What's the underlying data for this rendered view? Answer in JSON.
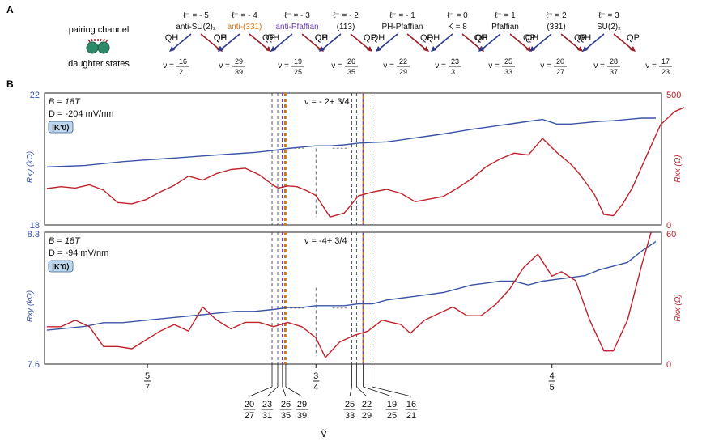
{
  "panel_labels": {
    "a": "A",
    "b": "B"
  },
  "schematic": {
    "pairing_label": "pairing channel",
    "daughter_label": "daughter states",
    "qh_label": "QH",
    "qp_label": "QP",
    "colors": {
      "qh_arrow": "#2b3a8f",
      "qp_arrow": "#9b1d24",
      "anti331": "#d9730d",
      "antipfaffian": "#6a3fb5"
    },
    "channels": [
      {
        "ell": "ℓ⁻ = - 5",
        "name": "anti-SU(2)₂",
        "color": "#111111",
        "qh": [
          "16",
          "21"
        ],
        "qp": [
          "29",
          "39"
        ]
      },
      {
        "ell": "ℓ⁻ = - 4",
        "name": "anti-(331)",
        "color": "#d9730d",
        "qh": [
          "19",
          "25"
        ],
        "qp": [
          "26",
          "35"
        ]
      },
      {
        "ell": "ℓ⁻ = - 3",
        "name": "anti-Pfaffian",
        "color": "#6a3fb5",
        "qh": [
          "22",
          "29"
        ],
        "qp": [
          "23",
          "31"
        ]
      },
      {
        "ell": "ℓ⁻ = - 2",
        "name": "(113)",
        "color": "#111111",
        "qh": [
          "25",
          "33"
        ],
        "qp": [
          "20",
          "27"
        ]
      },
      {
        "ell": "ℓ⁻ = - 1",
        "name": "PH-Pfaffian",
        "color": "#111111",
        "qh": [
          "28",
          "37"
        ],
        "qp": [
          "17",
          "23"
        ]
      },
      {
        "ell": "ℓ⁻ = 0",
        "name": "K = 8",
        "color": "#111111"
      },
      {
        "ell": "ℓ⁻ = 1",
        "name": "Pfaffian",
        "color": "#111111"
      },
      {
        "ell": "ℓ⁻ = 2",
        "name": "(331)",
        "color": "#111111"
      },
      {
        "ell": "ℓ⁻ = 3",
        "name": "SU(2)₂",
        "color": "#111111"
      }
    ]
  },
  "chart_data": {
    "type": "line",
    "x_axis": {
      "label": "ṽ",
      "ticks": [
        {
          "num": "5",
          "den": "7"
        },
        {
          "num": "3",
          "den": "4"
        },
        {
          "num": "4",
          "den": "5"
        }
      ],
      "fraction_markers": [
        {
          "num": "20",
          "den": "27"
        },
        {
          "num": "23",
          "den": "31"
        },
        {
          "num": "26",
          "den": "35"
        },
        {
          "num": "29",
          "den": "39"
        },
        {
          "num": "25",
          "den": "33"
        },
        {
          "num": "22",
          "den": "29"
        },
        {
          "num": "19",
          "den": "25"
        },
        {
          "num": "16",
          "den": "21"
        }
      ]
    },
    "vline_colors": {
      "default": "#333333",
      "anti_pfaffian": "#6a3fb5",
      "anti_331": "#d9730d",
      "rxy_color": "#3a55a8",
      "rxx_color": "#c0222b"
    },
    "panels": [
      {
        "field": "B = 18T",
        "displacement": "D = -204 mV/nm",
        "state_badge": "|K'0⟩",
        "filling_label": "ν = - 2+ 3/4",
        "left_axis": {
          "label": "Rxy (kΩ)",
          "min": "18",
          "max": "22"
        },
        "right_axis": {
          "label": "Rxx (Ω)",
          "min": "0",
          "max": "500"
        },
        "rxy_kohm": [
          [
            0.693,
            19.76
          ],
          [
            0.697,
            19.78
          ],
          [
            0.701,
            19.8
          ],
          [
            0.705,
            19.86
          ],
          [
            0.709,
            19.92
          ],
          [
            0.713,
            19.96
          ],
          [
            0.717,
            20.0
          ],
          [
            0.721,
            20.04
          ],
          [
            0.725,
            20.08
          ],
          [
            0.729,
            20.12
          ],
          [
            0.733,
            20.16
          ],
          [
            0.737,
            20.2
          ],
          [
            0.741,
            20.26
          ],
          [
            0.744,
            20.32
          ],
          [
            0.747,
            20.36
          ],
          [
            0.75,
            20.4
          ],
          [
            0.753,
            20.4
          ],
          [
            0.756,
            20.43
          ],
          [
            0.759,
            20.48
          ],
          [
            0.762,
            20.5
          ],
          [
            0.765,
            20.52
          ],
          [
            0.768,
            20.58
          ],
          [
            0.771,
            20.64
          ],
          [
            0.774,
            20.7
          ],
          [
            0.777,
            20.76
          ],
          [
            0.78,
            20.83
          ],
          [
            0.783,
            20.9
          ],
          [
            0.786,
            20.96
          ],
          [
            0.789,
            21.02
          ],
          [
            0.792,
            21.08
          ],
          [
            0.795,
            21.14
          ],
          [
            0.798,
            21.2
          ],
          [
            0.801,
            21.06
          ],
          [
            0.804,
            21.06
          ],
          [
            0.807,
            21.1
          ],
          [
            0.81,
            21.14
          ],
          [
            0.813,
            21.16
          ],
          [
            0.816,
            21.2
          ],
          [
            0.819,
            21.24
          ],
          [
            0.822,
            21.24
          ]
        ],
        "rxx_ohm": [
          [
            0.693,
            138
          ],
          [
            0.696,
            145
          ],
          [
            0.699,
            140
          ],
          [
            0.702,
            152
          ],
          [
            0.705,
            132
          ],
          [
            0.708,
            85
          ],
          [
            0.711,
            80
          ],
          [
            0.714,
            96
          ],
          [
            0.717,
            125
          ],
          [
            0.72,
            150
          ],
          [
            0.723,
            185
          ],
          [
            0.726,
            170
          ],
          [
            0.729,
            195
          ],
          [
            0.732,
            210
          ],
          [
            0.735,
            215
          ],
          [
            0.738,
            190
          ],
          [
            0.741,
            150
          ],
          [
            0.742,
            140
          ],
          [
            0.744,
            148
          ],
          [
            0.746,
            145
          ],
          [
            0.748,
            130
          ],
          [
            0.75,
            112
          ],
          [
            0.753,
            30
          ],
          [
            0.756,
            45
          ],
          [
            0.759,
            110
          ],
          [
            0.762,
            125
          ],
          [
            0.765,
            135
          ],
          [
            0.768,
            120
          ],
          [
            0.771,
            88
          ],
          [
            0.774,
            98
          ],
          [
            0.777,
            108
          ],
          [
            0.78,
            140
          ],
          [
            0.783,
            175
          ],
          [
            0.786,
            220
          ],
          [
            0.789,
            250
          ],
          [
            0.792,
            272
          ],
          [
            0.795,
            265
          ],
          [
            0.798,
            328
          ],
          [
            0.801,
            275
          ],
          [
            0.804,
            230
          ],
          [
            0.806,
            190
          ],
          [
            0.809,
            115
          ],
          [
            0.811,
            40
          ],
          [
            0.813,
            35
          ],
          [
            0.815,
            80
          ],
          [
            0.817,
            140
          ],
          [
            0.82,
            260
          ],
          [
            0.823,
            380
          ],
          [
            0.826,
            430
          ],
          [
            0.828,
            445
          ]
        ]
      },
      {
        "field": "B = 18T",
        "displacement": "D = -94 mV/nm",
        "state_badge": "|K'0⟩",
        "filling_label": "ν = -4+ 3/4",
        "left_axis": {
          "label": "Rxy (kΩ)",
          "min": "7.6",
          "max": "8.3"
        },
        "right_axis": {
          "label": "Rxx (Ω)",
          "min": "0",
          "max": "60"
        },
        "rxy_kohm": [
          [
            0.693,
            7.78
          ],
          [
            0.697,
            7.79
          ],
          [
            0.701,
            7.8
          ],
          [
            0.705,
            7.82
          ],
          [
            0.709,
            7.82
          ],
          [
            0.713,
            7.83
          ],
          [
            0.717,
            7.84
          ],
          [
            0.721,
            7.85
          ],
          [
            0.725,
            7.86
          ],
          [
            0.729,
            7.87
          ],
          [
            0.733,
            7.88
          ],
          [
            0.737,
            7.88
          ],
          [
            0.741,
            7.89
          ],
          [
            0.744,
            7.9
          ],
          [
            0.747,
            7.9
          ],
          [
            0.75,
            7.91
          ],
          [
            0.753,
            7.91
          ],
          [
            0.756,
            7.91
          ],
          [
            0.759,
            7.92
          ],
          [
            0.762,
            7.92
          ],
          [
            0.765,
            7.94
          ],
          [
            0.768,
            7.95
          ],
          [
            0.771,
            7.96
          ],
          [
            0.774,
            7.97
          ],
          [
            0.777,
            7.98
          ],
          [
            0.78,
            8.0
          ],
          [
            0.783,
            8.02
          ],
          [
            0.786,
            8.03
          ],
          [
            0.789,
            8.04
          ],
          [
            0.792,
            8.04
          ],
          [
            0.795,
            8.02
          ],
          [
            0.798,
            8.04
          ],
          [
            0.801,
            8.05
          ],
          [
            0.804,
            8.06
          ],
          [
            0.807,
            8.07
          ],
          [
            0.81,
            8.1
          ],
          [
            0.813,
            8.12
          ],
          [
            0.816,
            8.14
          ],
          [
            0.819,
            8.2
          ],
          [
            0.822,
            8.25
          ]
        ],
        "rxx_ohm": [
          [
            0.693,
            17
          ],
          [
            0.696,
            17
          ],
          [
            0.699,
            20
          ],
          [
            0.702,
            17
          ],
          [
            0.705,
            8
          ],
          [
            0.708,
            8
          ],
          [
            0.711,
            7
          ],
          [
            0.714,
            11
          ],
          [
            0.717,
            15
          ],
          [
            0.72,
            18
          ],
          [
            0.723,
            15
          ],
          [
            0.726,
            26
          ],
          [
            0.729,
            20
          ],
          [
            0.732,
            16
          ],
          [
            0.735,
            19
          ],
          [
            0.738,
            19
          ],
          [
            0.741,
            17
          ],
          [
            0.744,
            19
          ],
          [
            0.747,
            17
          ],
          [
            0.75,
            12
          ],
          [
            0.752,
            3
          ],
          [
            0.755,
            10
          ],
          [
            0.758,
            13
          ],
          [
            0.761,
            15
          ],
          [
            0.764,
            20
          ],
          [
            0.766,
            19
          ],
          [
            0.768,
            18
          ],
          [
            0.77,
            14
          ],
          [
            0.773,
            20
          ],
          [
            0.776,
            23
          ],
          [
            0.779,
            26
          ],
          [
            0.782,
            22
          ],
          [
            0.785,
            22
          ],
          [
            0.788,
            27
          ],
          [
            0.791,
            34
          ],
          [
            0.794,
            44
          ],
          [
            0.797,
            50
          ],
          [
            0.8,
            40
          ],
          [
            0.802,
            42
          ],
          [
            0.805,
            38
          ],
          [
            0.808,
            20
          ],
          [
            0.811,
            6
          ],
          [
            0.813,
            6
          ],
          [
            0.816,
            20
          ],
          [
            0.819,
            45
          ],
          [
            0.821,
            60
          ]
        ]
      }
    ]
  }
}
